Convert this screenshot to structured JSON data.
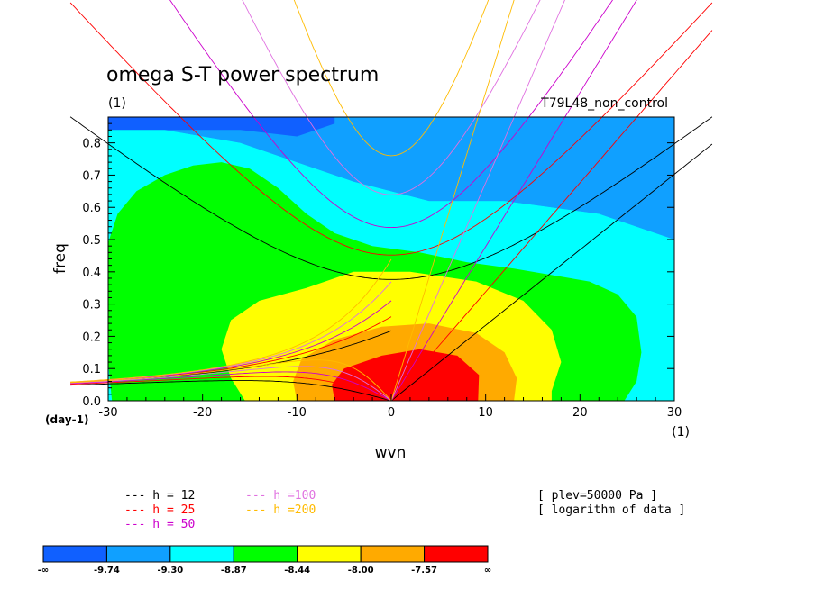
{
  "chart_data": {
    "type": "heatmap",
    "title": "omega S-T power spectrum",
    "subtitle": "(1)",
    "experiment": "T79L48_non_control",
    "xlabel": "wvn",
    "ylabel": "freq",
    "x_unit": "(1)",
    "y_unit": "(day-1)",
    "xlim": [
      -30,
      30
    ],
    "ylim": [
      0,
      0.88
    ],
    "x_ticks": [
      "-30",
      "-20",
      "-10",
      "0",
      "10",
      "20",
      "30"
    ],
    "y_ticks": [
      "0.0",
      "0.1",
      "0.2",
      "0.3",
      "0.4",
      "0.5",
      "0.6",
      "0.7",
      "0.8"
    ],
    "fill_levels": [
      "-∞",
      "-9.74",
      "-9.30",
      "-8.87",
      "-8.44",
      "-8.00",
      "-7.57",
      "∞"
    ],
    "fill_colors": [
      "#1060ff",
      "#10a0ff",
      "#00ffff",
      "#00ff00",
      "#ffff00",
      "#ffaa00",
      "#ff0000"
    ],
    "regions": [
      {
        "level": "-9.74",
        "color": "#10a0ff",
        "points": [
          [
            -30,
            0.84
          ],
          [
            -16,
            0.84
          ],
          [
            -10,
            0.82
          ],
          [
            -6,
            0.86
          ],
          [
            -6,
            0.88
          ],
          [
            30,
            0.88
          ],
          [
            30,
            0.5
          ],
          [
            22,
            0.58
          ],
          [
            12,
            0.62
          ],
          [
            4,
            0.62
          ],
          [
            -4,
            0.68
          ],
          [
            -10,
            0.74
          ],
          [
            -16,
            0.8
          ],
          [
            -24,
            0.84
          ],
          [
            -30,
            0.84
          ]
        ]
      },
      {
        "level": "-9.30",
        "color": "#00ffff",
        "points": [
          [
            -30,
            0.84
          ],
          [
            -24,
            0.84
          ],
          [
            -16,
            0.8
          ],
          [
            -10,
            0.74
          ],
          [
            -4,
            0.68
          ],
          [
            4,
            0.62
          ],
          [
            12,
            0.62
          ],
          [
            22,
            0.58
          ],
          [
            30,
            0.5
          ],
          [
            30,
            0
          ],
          [
            -30,
            0
          ]
        ]
      },
      {
        "level": "-8.87",
        "color": "#00ff00",
        "points": [
          [
            -29.6,
            0
          ],
          [
            -30,
            0.12
          ],
          [
            -30,
            0.49
          ],
          [
            -29,
            0.58
          ],
          [
            -27,
            0.65
          ],
          [
            -24,
            0.7
          ],
          [
            -21,
            0.73
          ],
          [
            -18,
            0.74
          ],
          [
            -15,
            0.72
          ],
          [
            -12,
            0.66
          ],
          [
            -9,
            0.58
          ],
          [
            -6,
            0.52
          ],
          [
            -2,
            0.48
          ],
          [
            3,
            0.46
          ],
          [
            8,
            0.43
          ],
          [
            13,
            0.41
          ],
          [
            17,
            0.39
          ],
          [
            21,
            0.37
          ],
          [
            24,
            0.33
          ],
          [
            26,
            0.26
          ],
          [
            26.5,
            0.15
          ],
          [
            26,
            0.06
          ],
          [
            24.7,
            0
          ]
        ]
      },
      {
        "level": "-8.44",
        "color": "#ffff00",
        "points": [
          [
            -15.5,
            0
          ],
          [
            -17,
            0.07
          ],
          [
            -18,
            0.16
          ],
          [
            -17,
            0.25
          ],
          [
            -14,
            0.31
          ],
          [
            -9,
            0.35
          ],
          [
            -4,
            0.4
          ],
          [
            2,
            0.4
          ],
          [
            9,
            0.37
          ],
          [
            14,
            0.31
          ],
          [
            17,
            0.22
          ],
          [
            18,
            0.12
          ],
          [
            17,
            0.03
          ],
          [
            17,
            0
          ]
        ]
      },
      {
        "level": "-8.00",
        "color": "#ffaa00",
        "points": [
          [
            -10,
            0
          ],
          [
            -10.4,
            0.06
          ],
          [
            -9.5,
            0.13
          ],
          [
            -6,
            0.19
          ],
          [
            -1,
            0.23
          ],
          [
            4,
            0.24
          ],
          [
            9,
            0.21
          ],
          [
            12,
            0.15
          ],
          [
            13.3,
            0.07
          ],
          [
            13,
            0
          ]
        ]
      },
      {
        "level": "-7.57",
        "color": "#ff0000",
        "points": [
          [
            -6,
            0
          ],
          [
            -6.3,
            0.05
          ],
          [
            -5,
            0.1
          ],
          [
            -1,
            0.14
          ],
          [
            3,
            0.16
          ],
          [
            7,
            0.14
          ],
          [
            9.3,
            0.08
          ],
          [
            9.2,
            0
          ]
        ]
      }
    ],
    "dispersion_series": [
      {
        "name": "h = 12",
        "color": "#000000",
        "h": 12
      },
      {
        "name": "h = 25",
        "color": "#ff0000",
        "h": 25
      },
      {
        "name": "h = 50",
        "color": "#cc00cc",
        "h": 50
      },
      {
        "name": "h =100",
        "color": "#e070e0",
        "h": 100
      },
      {
        "name": "h =200",
        "color": "#ffbb00",
        "h": 200
      }
    ],
    "annotations": [
      "[ plev=50000 Pa ]",
      "[ logarithm of data ]"
    ]
  }
}
